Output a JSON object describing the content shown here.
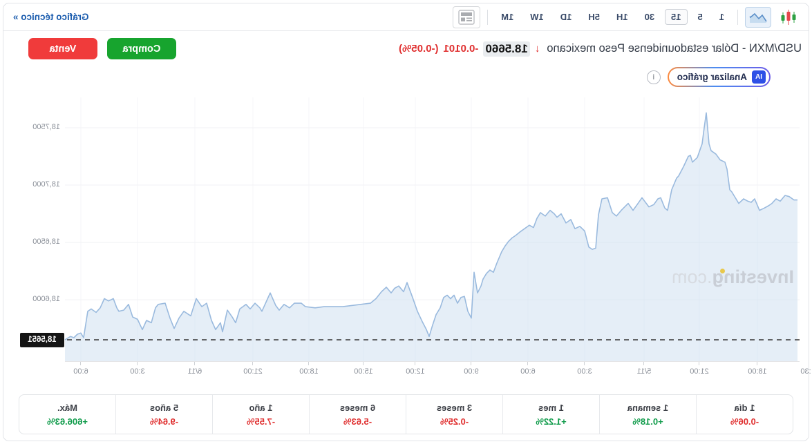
{
  "toolbar": {
    "chart_types": [
      {
        "name": "candlestick-icon",
        "selected": false
      },
      {
        "name": "area-chart-icon",
        "selected": true
      }
    ],
    "intervals": [
      {
        "label": "1",
        "selected": false
      },
      {
        "label": "5",
        "selected": false
      },
      {
        "label": "15",
        "selected": true
      },
      {
        "label": "30",
        "selected": false
      },
      {
        "label": "1H",
        "selected": false
      },
      {
        "label": "5H",
        "selected": false
      },
      {
        "label": "1D",
        "selected": false
      },
      {
        "label": "1W",
        "selected": false
      },
      {
        "label": "1M",
        "selected": false
      }
    ],
    "panel_icon": "newspaper-icon",
    "technical_chart_link": "Gráfico técnico »"
  },
  "header": {
    "title": "USD/MXN - Dólar estadounidense Peso mexicano",
    "direction_icon": "down-arrow",
    "down_arrow_glyph": "↓",
    "price": "18.5660",
    "change": "-0.0101",
    "change_pct": "(-0.05%)",
    "buy_button": "Compra",
    "sell_button": "Venta",
    "ai_badge": "IA",
    "analyze_button": "Analizar gráfico",
    "info_glyph": "i",
    "colors": {
      "buy_green": "#17a42e",
      "sell_red": "#f03b3b",
      "change_red": "#e03030",
      "link_blue": "#1b5cae"
    }
  },
  "chart": {
    "watermark_brand": "Investing",
    "watermark_suffix": ".com",
    "line_color": "#9abade",
    "fill_color": "rgba(203,222,240,0.5)",
    "dashed_line_color": "#3f3f3f",
    "badge_bg": "#141414"
  },
  "chart_data": {
    "type": "area",
    "title": "USD/MXN",
    "interval": "15",
    "grid": true,
    "legend": false,
    "ylim": [
      18.5465,
      18.7765
    ],
    "y_ticks": [
      {
        "label": "18,6000",
        "value": 18.6
      },
      {
        "label": "18,6500",
        "value": 18.65
      },
      {
        "label": "18,7000",
        "value": 18.7
      },
      {
        "label": "18,7500",
        "value": 18.75
      }
    ],
    "x_ticks": [
      {
        "label": ":30",
        "x": -9
      },
      {
        "label": "18:00",
        "x": 61
      },
      {
        "label": "21:00",
        "x": 145
      },
      {
        "label": "5/11",
        "x": 225
      },
      {
        "label": "3:00",
        "x": 311
      },
      {
        "label": "6:00",
        "x": 393
      },
      {
        "label": "9:00",
        "x": 475
      },
      {
        "label": "12:00",
        "x": 556
      },
      {
        "label": "15:00",
        "x": 631
      },
      {
        "label": "18:00",
        "x": 710
      },
      {
        "label": "21:00",
        "x": 791
      },
      {
        "label": "6/11",
        "x": 875
      },
      {
        "label": "3:00",
        "x": 958
      },
      {
        "label": "6:00",
        "x": 1040
      }
    ],
    "last_price_value": 18.5651,
    "last_price_label": "18,5651",
    "series": [
      {
        "name": "USD/MXN",
        "points": [
          [
            3,
            18.687
          ],
          [
            8,
            18.687
          ],
          [
            15,
            18.69
          ],
          [
            21,
            18.691
          ],
          [
            28,
            18.686
          ],
          [
            34,
            18.688
          ],
          [
            40,
            18.684
          ],
          [
            45,
            18.682
          ],
          [
            51,
            18.68
          ],
          [
            58,
            18.678
          ],
          [
            65,
            18.688
          ],
          [
            70,
            18.685
          ],
          [
            75,
            18.686
          ],
          [
            81,
            18.688
          ],
          [
            88,
            18.684
          ],
          [
            95,
            18.691
          ],
          [
            98,
            18.694
          ],
          [
            101,
            18.696
          ],
          [
            105,
            18.714
          ],
          [
            108,
            18.72
          ],
          [
            115,
            18.722
          ],
          [
            121,
            18.727
          ],
          [
            128,
            18.73
          ],
          [
            131,
            18.736
          ],
          [
            135,
            18.763
          ],
          [
            138,
            18.75
          ],
          [
            141,
            18.736
          ],
          [
            148,
            18.724
          ],
          [
            155,
            18.72
          ],
          [
            158,
            18.726
          ],
          [
            161,
            18.725
          ],
          [
            168,
            18.716
          ],
          [
            175,
            18.708
          ],
          [
            178,
            18.706
          ],
          [
            185,
            18.696
          ],
          [
            191,
            18.678
          ],
          [
            195,
            18.68
          ],
          [
            201,
            18.689
          ],
          [
            205,
            18.688
          ],
          [
            211,
            18.683
          ],
          [
            218,
            18.681
          ],
          [
            228,
            18.689
          ],
          [
            235,
            18.683
          ],
          [
            241,
            18.678
          ],
          [
            248,
            18.684
          ],
          [
            258,
            18.678
          ],
          [
            265,
            18.673
          ],
          [
            271,
            18.676
          ],
          [
            278,
            18.689
          ],
          [
            286,
            18.688
          ],
          [
            291,
            18.674
          ],
          [
            295,
            18.645
          ],
          [
            300,
            18.644
          ],
          [
            305,
            18.646
          ],
          [
            311,
            18.66
          ],
          [
            318,
            18.664
          ],
          [
            325,
            18.662
          ],
          [
            331,
            18.67
          ],
          [
            338,
            18.667
          ],
          [
            345,
            18.675
          ],
          [
            351,
            18.672
          ],
          [
            355,
            18.675
          ],
          [
            361,
            18.678
          ],
          [
            368,
            18.673
          ],
          [
            375,
            18.676
          ],
          [
            380,
            18.671
          ],
          [
            385,
            18.663
          ],
          [
            391,
            18.665
          ],
          [
            398,
            18.662
          ],
          [
            405,
            18.659
          ],
          [
            411,
            18.656
          ],
          [
            416,
            18.654
          ],
          [
            421,
            18.651
          ],
          [
            426,
            18.647
          ],
          [
            431,
            18.642
          ],
          [
            438,
            18.632
          ],
          [
            443,
            18.624
          ],
          [
            448,
            18.626
          ],
          [
            453,
            18.623
          ],
          [
            458,
            18.618
          ],
          [
            461,
            18.612
          ],
          [
            466,
            18.606
          ],
          [
            471,
            18.624
          ],
          [
            475,
            18.584
          ],
          [
            480,
            18.59
          ],
          [
            485,
            18.603
          ],
          [
            490,
            18.602
          ],
          [
            495,
            18.597
          ],
          [
            500,
            18.604
          ],
          [
            505,
            18.601
          ],
          [
            510,
            18.604
          ],
          [
            515,
            18.602
          ],
          [
            520,
            18.593
          ],
          [
            526,
            18.587
          ],
          [
            531,
            18.578
          ],
          [
            536,
            18.568
          ],
          [
            540,
            18.574
          ],
          [
            546,
            18.581
          ],
          [
            553,
            18.59
          ],
          [
            560,
            18.602
          ],
          [
            568,
            18.615
          ],
          [
            573,
            18.607
          ],
          [
            580,
            18.612
          ],
          [
            586,
            18.61
          ],
          [
            591,
            18.606
          ],
          [
            598,
            18.611
          ],
          [
            605,
            18.607
          ],
          [
            613,
            18.601
          ],
          [
            621,
            18.597
          ],
          [
            635,
            18.596
          ],
          [
            648,
            18.595
          ],
          [
            661,
            18.594
          ],
          [
            675,
            18.594
          ],
          [
            688,
            18.594
          ],
          [
            701,
            18.593
          ],
          [
            715,
            18.594
          ],
          [
            721,
            18.597
          ],
          [
            731,
            18.597
          ],
          [
            738,
            18.593
          ],
          [
            746,
            18.596
          ],
          [
            753,
            18.591
          ],
          [
            758,
            18.595
          ],
          [
            766,
            18.606
          ],
          [
            772,
            18.598
          ],
          [
            778,
            18.59
          ],
          [
            781,
            18.593
          ],
          [
            788,
            18.597
          ],
          [
            795,
            18.592
          ],
          [
            801,
            18.596
          ],
          [
            810,
            18.592
          ],
          [
            816,
            18.58
          ],
          [
            821,
            18.585
          ],
          [
            828,
            18.591
          ],
          [
            835,
            18.572
          ],
          [
            838,
            18.58
          ],
          [
            845,
            18.574
          ],
          [
            851,
            18.582
          ],
          [
            858,
            18.597
          ],
          [
            865,
            18.594
          ],
          [
            873,
            18.601
          ],
          [
            881,
            18.586
          ],
          [
            891,
            18.59
          ],
          [
            898,
            18.584
          ],
          [
            905,
            18.575
          ],
          [
            911,
            18.584
          ],
          [
            918,
            18.597
          ],
          [
            928,
            18.596
          ],
          [
            932,
            18.593
          ],
          [
            938,
            18.58
          ],
          [
            945,
            18.582
          ],
          [
            951,
            18.574
          ],
          [
            958,
            18.583
          ],
          [
            965,
            18.585
          ],
          [
            971,
            18.596
          ],
          [
            978,
            18.591
          ],
          [
            985,
            18.59
          ],
          [
            988,
            18.593
          ],
          [
            993,
            18.601
          ],
          [
            1000,
            18.599
          ],
          [
            1006,
            18.601
          ],
          [
            1012,
            18.593
          ],
          [
            1018,
            18.589
          ],
          [
            1025,
            18.592
          ],
          [
            1030,
            18.59
          ],
          [
            1036,
            18.567
          ],
          [
            1040,
            18.571
          ],
          [
            1045,
            18.57
          ],
          [
            1050,
            18.567
          ],
          [
            1055,
            18.568
          ],
          [
            1058,
            18.567
          ],
          [
            1063,
            18.5651
          ]
        ]
      }
    ]
  },
  "stats": {
    "columns": [
      {
        "label": "1 día",
        "value": "-0.06%",
        "direction": "down"
      },
      {
        "label": "1 semana",
        "value": "+0.18%",
        "direction": "up"
      },
      {
        "label": "1 mes",
        "value": "+1.22%",
        "direction": "up"
      },
      {
        "label": "3 meses",
        "value": "-0.25%",
        "direction": "down"
      },
      {
        "label": "6 meses",
        "value": "-5.63%",
        "direction": "down"
      },
      {
        "label": "1 año",
        "value": "-7.55%",
        "direction": "down"
      },
      {
        "label": "5 años",
        "value": "-9.64%",
        "direction": "down"
      },
      {
        "label": "Máx.",
        "value": "+606.63%",
        "direction": "up"
      }
    ]
  }
}
